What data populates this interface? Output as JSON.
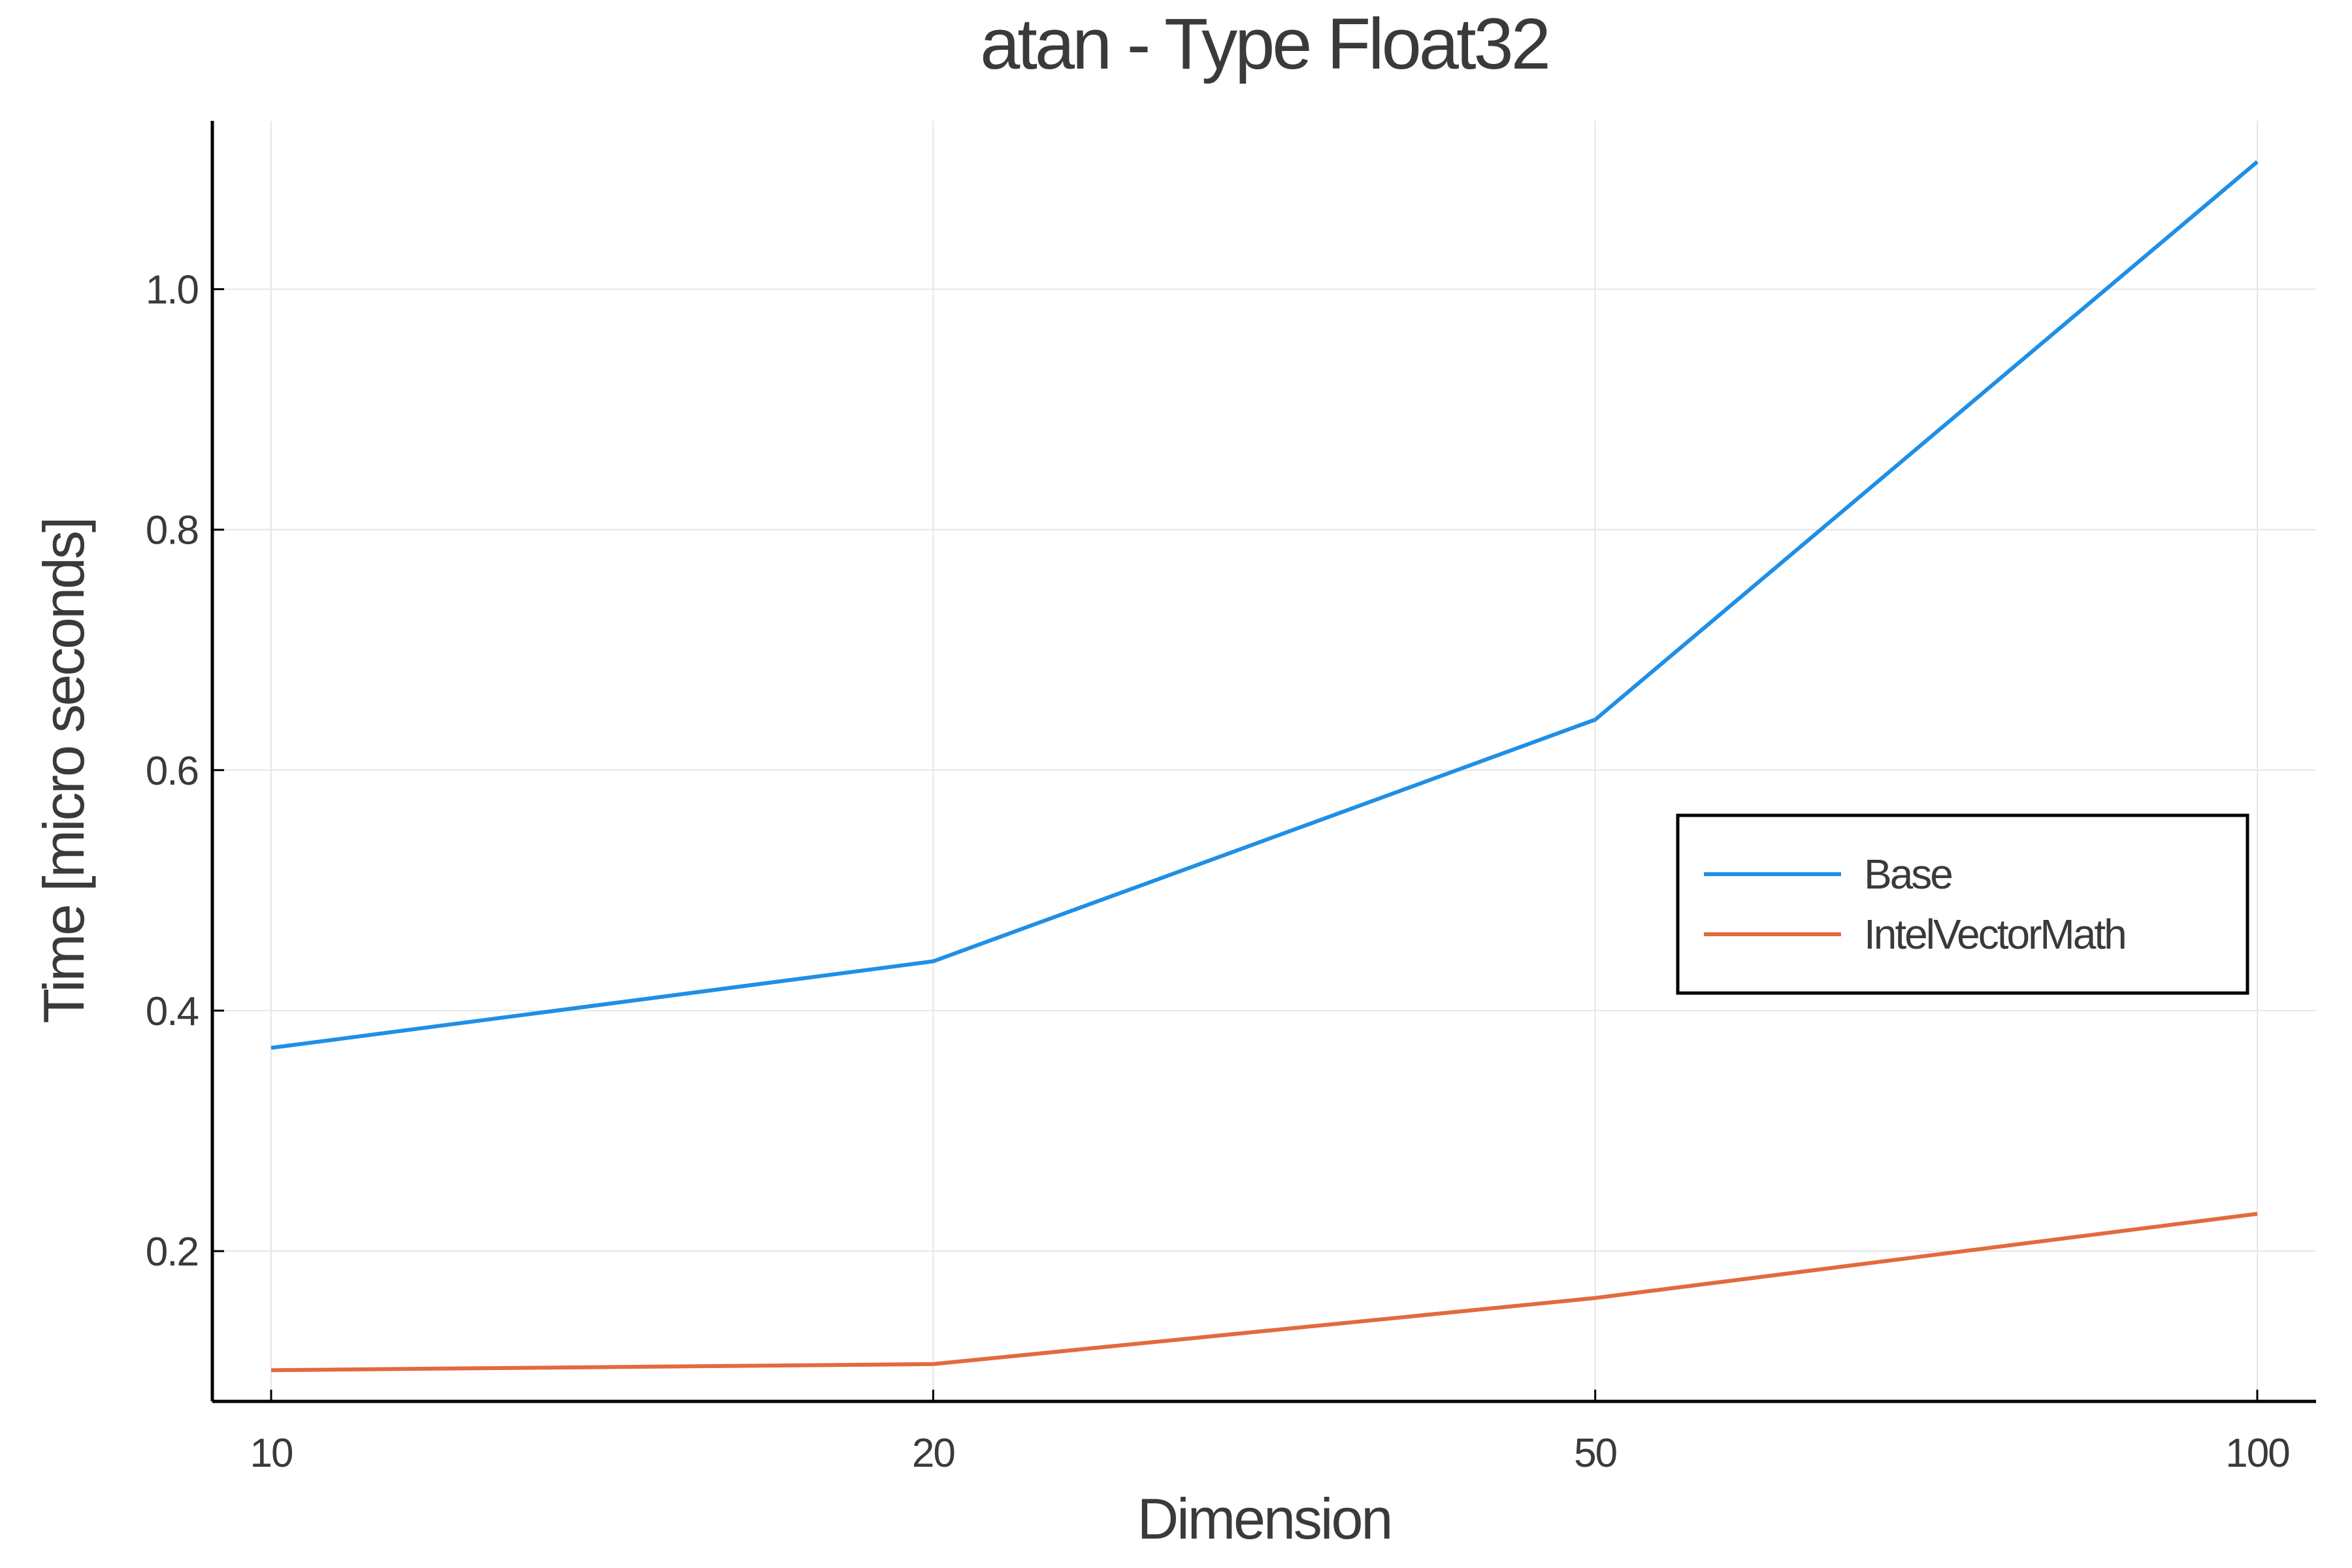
{
  "chart_data": {
    "type": "line",
    "title": "atan - Type Float32",
    "xlabel": "Dimension",
    "ylabel": "Time [micro seconds]",
    "categories": [
      "10",
      "20",
      "50",
      "100"
    ],
    "ylim": [
      0.075,
      1.14
    ],
    "yticks": [
      0.2,
      0.4,
      0.6,
      0.8,
      1.0
    ],
    "ytick_labels": [
      "0.2",
      "0.4",
      "0.6",
      "0.8",
      "1.0"
    ],
    "grid": true,
    "legend_position": "right",
    "series": [
      {
        "name": "Base",
        "color": "#1f8fe6",
        "values": [
          0.369,
          0.441,
          0.642,
          1.106
        ]
      },
      {
        "name": "IntelVectorMath",
        "color": "#e26a3e",
        "values": [
          0.101,
          0.106,
          0.161,
          0.231
        ]
      }
    ]
  }
}
